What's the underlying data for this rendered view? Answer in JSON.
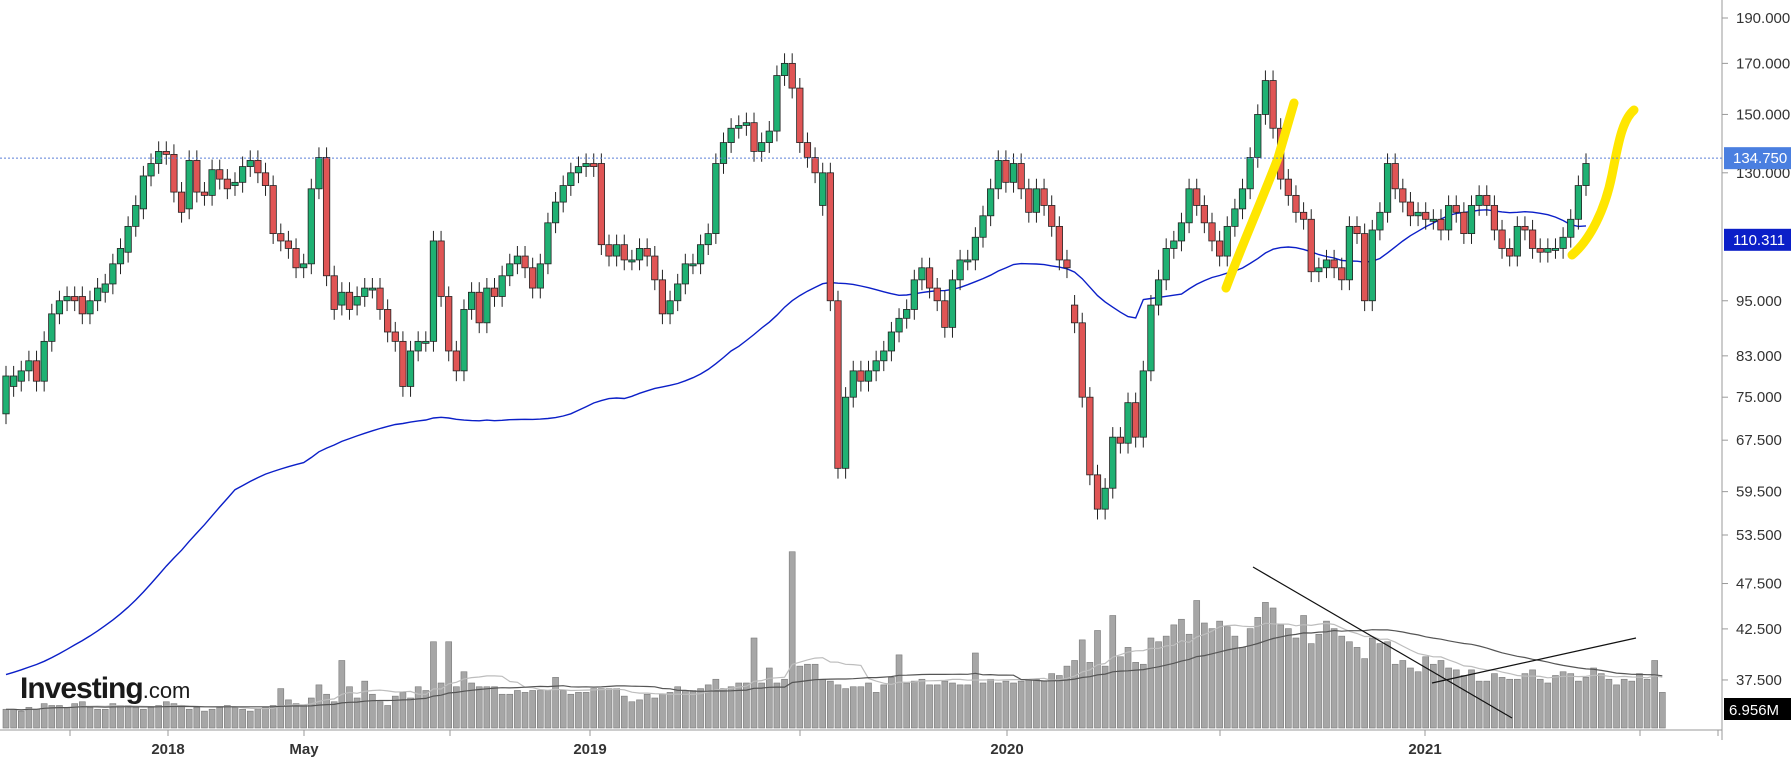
{
  "chart_data": {
    "type": "candlestick",
    "y_axis_labels": [
      "190.000",
      "170.000",
      "150.000",
      "130.000",
      "95.000",
      "83.000",
      "75.000",
      "67.500",
      "59.500",
      "53.500",
      "47.500",
      "42.500",
      "37.500"
    ],
    "y_axis_values": [
      190,
      170,
      150,
      130,
      95,
      83,
      75,
      67.5,
      59.5,
      53.5,
      47.5,
      42.5,
      37.5
    ],
    "y_scale": "log",
    "x_axis_labels": [
      "2018",
      "May",
      "2019",
      "2020",
      "2021"
    ],
    "current_price": {
      "label": "134.750",
      "value": 134.75,
      "color": "#4a7fe0"
    },
    "moving_average": {
      "label": "110.311",
      "value": 110.311,
      "color": "#0b1fc8"
    },
    "volume_badge": {
      "label": "6.956M",
      "color": "#000000"
    },
    "candles": [
      [
        72,
        79
      ],
      [
        77,
        79
      ],
      [
        78,
        80
      ],
      [
        80,
        82
      ],
      [
        82,
        78
      ],
      [
        78,
        86
      ],
      [
        86,
        92
      ],
      [
        92,
        95
      ],
      [
        95,
        96
      ],
      [
        96,
        95
      ],
      [
        96,
        92
      ],
      [
        92,
        95
      ],
      [
        95,
        98
      ],
      [
        97,
        99
      ],
      [
        99,
        104
      ],
      [
        104,
        108
      ],
      [
        107,
        114
      ],
      [
        114,
        120
      ],
      [
        119,
        129
      ],
      [
        129,
        133
      ],
      [
        133,
        137
      ],
      [
        137,
        136
      ],
      [
        136,
        124
      ],
      [
        124,
        118
      ],
      [
        119,
        134
      ],
      [
        134,
        124
      ],
      [
        124,
        123
      ],
      [
        123,
        131
      ],
      [
        131,
        128
      ],
      [
        128,
        125
      ],
      [
        126,
        127
      ],
      [
        127,
        132
      ],
      [
        132,
        134
      ],
      [
        134,
        130
      ],
      [
        130,
        126
      ],
      [
        126,
        112
      ],
      [
        112,
        110
      ],
      [
        110,
        108
      ],
      [
        108,
        103
      ],
      [
        103,
        104
      ],
      [
        104,
        125
      ],
      [
        125,
        135
      ],
      [
        135,
        101
      ],
      [
        101,
        93
      ],
      [
        94,
        97
      ],
      [
        97,
        93
      ],
      [
        94,
        96
      ],
      [
        96,
        98
      ],
      [
        98,
        98
      ],
      [
        98,
        93
      ],
      [
        93,
        88
      ],
      [
        88,
        86
      ],
      [
        86,
        77
      ],
      [
        77,
        84
      ],
      [
        84,
        86
      ],
      [
        86,
        86
      ],
      [
        86,
        110
      ],
      [
        110,
        96
      ],
      [
        96,
        84
      ],
      [
        84,
        80
      ],
      [
        80,
        93
      ],
      [
        93,
        97
      ],
      [
        97,
        90
      ],
      [
        90,
        98
      ],
      [
        98,
        96
      ],
      [
        96,
        101
      ],
      [
        101,
        104
      ],
      [
        104,
        106
      ],
      [
        106,
        103
      ],
      [
        103,
        98
      ],
      [
        98,
        104
      ],
      [
        104,
        115
      ],
      [
        115,
        121
      ],
      [
        121,
        126
      ],
      [
        126,
        130
      ],
      [
        130,
        132
      ],
      [
        132,
        133
      ],
      [
        133,
        132
      ],
      [
        133,
        109
      ],
      [
        109,
        106
      ],
      [
        106,
        109
      ],
      [
        109,
        105
      ],
      [
        105,
        105
      ],
      [
        105,
        108
      ],
      [
        108,
        106
      ],
      [
        106,
        100
      ],
      [
        100,
        92
      ],
      [
        92,
        95
      ],
      [
        95,
        99
      ],
      [
        99,
        104
      ],
      [
        104,
        104
      ],
      [
        104,
        109
      ],
      [
        109,
        112
      ],
      [
        112,
        133
      ],
      [
        133,
        140
      ],
      [
        140,
        145
      ],
      [
        145,
        146
      ],
      [
        146,
        147
      ],
      [
        147,
        137
      ],
      [
        137,
        140
      ],
      [
        140,
        144
      ],
      [
        144,
        165
      ],
      [
        165,
        170
      ],
      [
        170,
        160
      ],
      [
        160,
        140
      ],
      [
        140,
        135
      ],
      [
        135,
        130
      ],
      [
        120,
        130
      ],
      [
        130,
        95
      ],
      [
        95,
        63
      ],
      [
        63,
        75
      ],
      [
        75,
        80
      ],
      [
        80,
        78
      ],
      [
        78,
        80
      ],
      [
        80,
        82
      ],
      [
        82,
        84
      ],
      [
        84,
        88
      ],
      [
        88,
        91
      ],
      [
        91,
        93
      ],
      [
        93,
        100
      ],
      [
        100,
        103
      ],
      [
        103,
        98
      ],
      [
        98,
        95
      ],
      [
        95,
        89
      ],
      [
        89,
        100
      ],
      [
        100,
        105
      ],
      [
        105,
        105
      ],
      [
        105,
        111
      ],
      [
        111,
        117
      ],
      [
        117,
        125
      ],
      [
        125,
        134
      ],
      [
        134,
        127
      ],
      [
        127,
        133
      ],
      [
        133,
        125
      ],
      [
        125,
        118
      ],
      [
        118,
        125
      ],
      [
        125,
        120
      ],
      [
        120,
        114
      ],
      [
        114,
        105
      ],
      [
        105,
        103
      ],
      [
        94,
        90
      ],
      [
        90,
        75
      ],
      [
        75,
        62
      ],
      [
        62,
        57
      ],
      [
        57,
        60
      ],
      [
        60,
        68
      ],
      [
        68,
        67
      ],
      [
        67,
        74
      ],
      [
        74,
        68
      ],
      [
        68,
        80
      ],
      [
        80,
        94
      ],
      [
        94,
        100
      ],
      [
        100,
        108
      ],
      [
        108,
        110
      ],
      [
        110,
        115
      ],
      [
        115,
        125
      ],
      [
        125,
        120
      ],
      [
        120,
        115
      ],
      [
        115,
        110
      ],
      [
        110,
        106
      ],
      [
        106,
        114
      ],
      [
        114,
        119
      ],
      [
        119,
        125
      ],
      [
        125,
        135
      ],
      [
        135,
        150
      ],
      [
        150,
        163
      ],
      [
        163,
        145
      ],
      [
        145,
        128
      ],
      [
        128,
        123
      ],
      [
        123,
        118
      ],
      [
        118,
        116
      ],
      [
        116,
        102
      ],
      [
        102,
        103
      ],
      [
        103,
        105
      ],
      [
        105,
        103
      ],
      [
        103,
        100
      ],
      [
        100,
        114
      ],
      [
        114,
        112
      ],
      [
        112,
        95
      ],
      [
        95,
        113
      ],
      [
        113,
        118
      ],
      [
        118,
        133
      ],
      [
        133,
        125
      ],
      [
        125,
        121
      ],
      [
        121,
        117
      ],
      [
        117,
        118
      ],
      [
        118,
        116
      ],
      [
        116,
        116
      ],
      [
        116,
        113
      ],
      [
        113,
        120
      ],
      [
        120,
        118
      ],
      [
        118,
        112
      ],
      [
        112,
        120
      ],
      [
        120,
        123
      ],
      [
        123,
        120
      ],
      [
        120,
        113
      ],
      [
        113,
        108
      ],
      [
        108,
        106
      ],
      [
        106,
        114
      ],
      [
        114,
        113
      ],
      [
        113,
        108
      ],
      [
        108,
        107
      ],
      [
        107,
        108
      ],
      [
        108,
        108
      ],
      [
        108,
        111
      ],
      [
        111,
        116
      ],
      [
        116,
        126
      ],
      [
        126,
        133
      ]
    ],
    "volume": [
      1.0,
      1.0,
      0.9,
      1.1,
      1.0,
      1.3,
      1.2,
      1.2,
      1.1,
      1.3,
      1.4,
      1.1,
      1.0,
      1.0,
      1.3,
      1.2,
      1.2,
      1.1,
      1.0,
      1.1,
      1.2,
      1.4,
      1.3,
      1.2,
      1.0,
      1.1,
      0.9,
      1.0,
      1.1,
      1.2,
      1.1,
      1.0,
      0.9,
      1.0,
      1.1,
      1.2,
      2.1,
      1.5,
      1.3,
      1.2,
      1.6,
      2.3,
      1.8,
      1.4,
      3.6,
      2.2,
      1.6,
      2.5,
      1.8,
      1.4,
      1.2,
      1.7,
      1.9,
      1.6,
      2.2,
      2.0,
      4.6,
      2.4,
      4.6,
      2.2,
      3.0,
      2.4,
      2.2,
      2.2,
      2.2,
      1.8,
      1.8,
      2.0,
      1.9,
      2.0,
      2.0,
      2.0,
      2.7,
      2.0,
      1.8,
      1.9,
      1.9,
      2.1,
      2.1,
      2.1,
      2.1,
      1.7,
      1.4,
      1.5,
      1.8,
      1.6,
      1.8,
      1.9,
      2.2,
      2.0,
      2.0,
      2.1,
      2.3,
      2.6,
      2.1,
      2.2,
      2.4,
      2.4,
      4.8,
      2.4,
      3.2,
      2.4,
      2.6,
      9.4,
      3.3,
      3.4,
      3.4,
      2.6,
      2.5,
      2.3,
      2.1,
      2.2,
      2.2,
      2.4,
      1.9,
      2.3,
      2.7,
      3.9,
      2.4,
      2.5,
      2.6,
      2.3,
      2.3,
      2.5,
      2.4,
      2.3,
      2.3,
      4.0,
      2.4,
      2.6,
      2.4,
      2.5,
      2.4,
      2.5,
      2.6,
      2.6,
      2.5,
      2.9,
      2.8,
      3.3,
      3.6,
      4.7,
      3.5,
      5.2,
      3.3,
      6.0,
      3.8,
      4.3,
      3.5,
      3.4,
      4.8,
      4.6,
      4.9,
      5.5,
      5.8,
      5.0,
      6.8,
      5.6,
      5.3,
      5.7,
      5.4,
      4.9,
      4.3,
      5.3,
      5.9,
      6.7,
      6.4,
      5.5,
      5.3,
      4.8,
      6.0,
      4.5,
      5.0,
      5.7,
      5.3,
      4.9,
      4.6,
      4.3,
      3.7,
      4.8,
      4.5,
      4.6,
      3.4,
      3.6,
      3.2,
      3.0,
      3.8,
      3.4,
      3.6,
      3.2,
      3.1,
      2.8,
      3.1,
      2.5,
      2.5,
      2.9,
      2.7,
      2.6,
      2.6,
      2.9,
      3.1,
      2.6,
      2.4,
      2.8,
      3.0,
      2.9,
      2.5,
      2.7,
      3.2,
      2.9,
      2.6,
      2.3,
      2.6,
      2.5,
      2.9,
      2.6,
      3.6,
      1.9
    ],
    "volume_max": 9.6
  }
}
